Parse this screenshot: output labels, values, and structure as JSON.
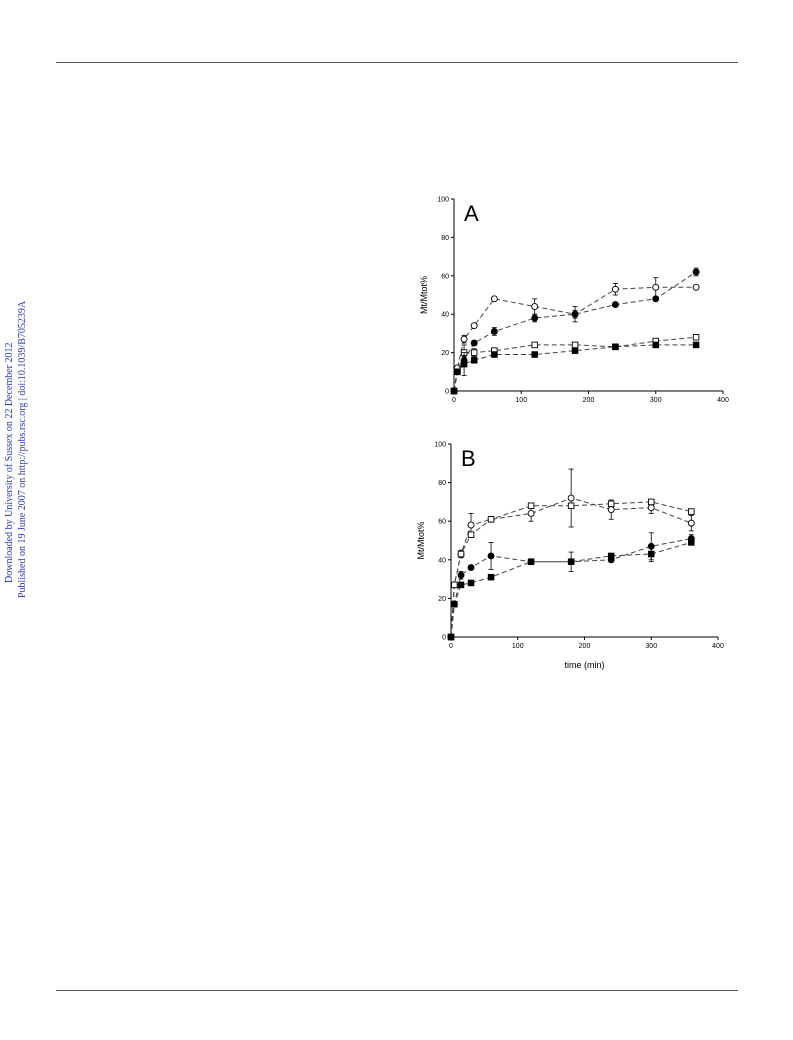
{
  "side_text": {
    "line1": "Downloaded by University of Sussex on 22 December 2012",
    "line2": "Published on 19 June 2007 on http://pubs.rsc.org | doi:10.1039/B705239A"
  },
  "chart_data": [
    {
      "type": "scatter",
      "panel_label": "A",
      "xlabel": "",
      "ylabel": "Mt/Mtot%",
      "xlim": [
        0,
        400
      ],
      "ylim": [
        0,
        100
      ],
      "xticks": [
        0,
        100,
        200,
        300,
        400
      ],
      "yticks": [
        0,
        20,
        40,
        60,
        80,
        100
      ],
      "series": [
        {
          "marker": "open-circle",
          "x": [
            0,
            5,
            15,
            30,
            60,
            120,
            180,
            240,
            300,
            360
          ],
          "y": [
            0,
            12,
            27,
            34,
            48,
            44,
            40,
            53,
            54,
            54
          ],
          "err": [
            0,
            1,
            2,
            1,
            1,
            4,
            4,
            3,
            5,
            1
          ]
        },
        {
          "marker": "filled-circle",
          "x": [
            0,
            5,
            15,
            30,
            60,
            120,
            180,
            240,
            300,
            360
          ],
          "y": [
            0,
            10,
            16,
            25,
            31,
            38,
            40,
            45,
            48,
            62
          ],
          "err": [
            0,
            1,
            2,
            1,
            2,
            2,
            2,
            1,
            1,
            2
          ]
        },
        {
          "marker": "open-square",
          "x": [
            0,
            5,
            15,
            30,
            60,
            120,
            180,
            240,
            300,
            360
          ],
          "y": [
            0,
            10,
            20,
            20,
            21,
            24,
            24,
            23,
            26,
            28
          ],
          "err": [
            0,
            1,
            4,
            2,
            1,
            1,
            1,
            1,
            1,
            1
          ]
        },
        {
          "marker": "filled-square",
          "x": [
            0,
            5,
            15,
            30,
            60,
            120,
            180,
            240,
            300,
            360
          ],
          "y": [
            0,
            10,
            14,
            16,
            19,
            19,
            21,
            23,
            24,
            24
          ],
          "err": [
            0,
            1,
            6,
            1,
            1,
            1,
            1,
            1,
            1,
            1
          ]
        }
      ]
    },
    {
      "type": "scatter",
      "panel_label": "B",
      "xlabel": "time (min)",
      "ylabel": "Mt/Mtot%",
      "xlim": [
        0,
        400
      ],
      "ylim": [
        0,
        100
      ],
      "xticks": [
        0,
        100,
        200,
        300,
        400
      ],
      "yticks": [
        0,
        20,
        40,
        60,
        80,
        100
      ],
      "series": [
        {
          "marker": "open-circle",
          "x": [
            0,
            5,
            15,
            30,
            60,
            120,
            180,
            240,
            300,
            360
          ],
          "y": [
            0,
            27,
            43,
            58,
            61,
            64,
            72,
            66,
            67,
            59
          ],
          "err": [
            0,
            1,
            2,
            6,
            1,
            4,
            15,
            5,
            3,
            4
          ]
        },
        {
          "marker": "open-square",
          "x": [
            0,
            5,
            15,
            30,
            60,
            120,
            180,
            240,
            300,
            360
          ],
          "y": [
            0,
            27,
            43,
            53,
            61,
            68,
            68,
            69,
            70,
            65
          ],
          "err": [
            0,
            1,
            1,
            1,
            1,
            1,
            1,
            1,
            1,
            1
          ]
        },
        {
          "marker": "filled-circle",
          "x": [
            0,
            5,
            15,
            30,
            60,
            120,
            180,
            240,
            300,
            360
          ],
          "y": [
            0,
            17,
            32,
            36,
            42,
            39,
            39,
            40,
            47,
            51
          ],
          "err": [
            0,
            1,
            2,
            1,
            7,
            1,
            5,
            1,
            7,
            2
          ]
        },
        {
          "marker": "filled-square",
          "x": [
            0,
            5,
            15,
            30,
            60,
            120,
            180,
            240,
            300,
            360
          ],
          "y": [
            0,
            17,
            27,
            28,
            31,
            39,
            39,
            42,
            43,
            49
          ],
          "err": [
            0,
            1,
            1,
            1,
            1,
            1,
            1,
            1,
            4,
            1
          ]
        }
      ]
    }
  ]
}
